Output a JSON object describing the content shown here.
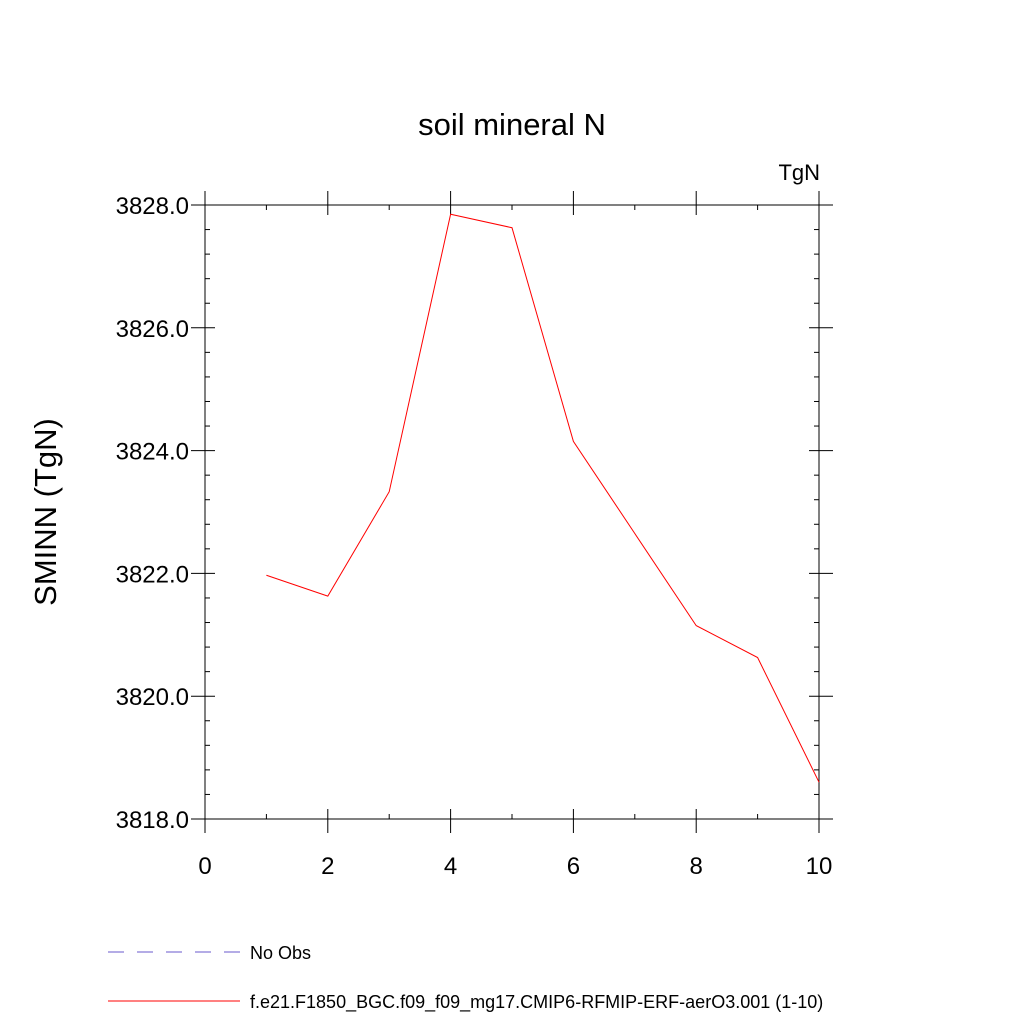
{
  "chart_data": {
    "type": "line",
    "title": "soil mineral N",
    "units_label": "TgN",
    "ylabel": "SMINN  (TgN)",
    "xlabel": "",
    "xlim": [
      0,
      10
    ],
    "ylim": [
      3818.0,
      3828.0
    ],
    "x_ticks": [
      0,
      2,
      4,
      6,
      8,
      10
    ],
    "y_ticks": [
      3818.0,
      3820.0,
      3822.0,
      3824.0,
      3826.0,
      3828.0
    ],
    "y_tick_labels": [
      "3818.0",
      "3820.0",
      "3822.0",
      "3824.0",
      "3826.0",
      "3828.0"
    ],
    "grid": false,
    "series": [
      {
        "name": "f.e21.F1850_BGC.f09_f09_mg17.CMIP6-RFMIP-ERF-aerO3.001 (1-10)",
        "color": "#ff0000",
        "x": [
          1,
          2,
          3,
          4,
          5,
          6,
          7,
          8,
          9,
          10
        ],
        "y": [
          3821.97,
          3821.63,
          3823.33,
          3827.85,
          3827.63,
          3824.15,
          3822.65,
          3821.15,
          3820.63,
          3818.6
        ]
      }
    ],
    "legend": {
      "placement": "bottom-left",
      "entries": [
        {
          "label": "No Obs",
          "color": "#6a5acd",
          "style": "dashed"
        },
        {
          "label": "f.e21.F1850_BGC.f09_f09_mg17.CMIP6-RFMIP-ERF-aerO3.001 (1-10)",
          "color": "#ff0000",
          "style": "solid"
        }
      ]
    }
  }
}
